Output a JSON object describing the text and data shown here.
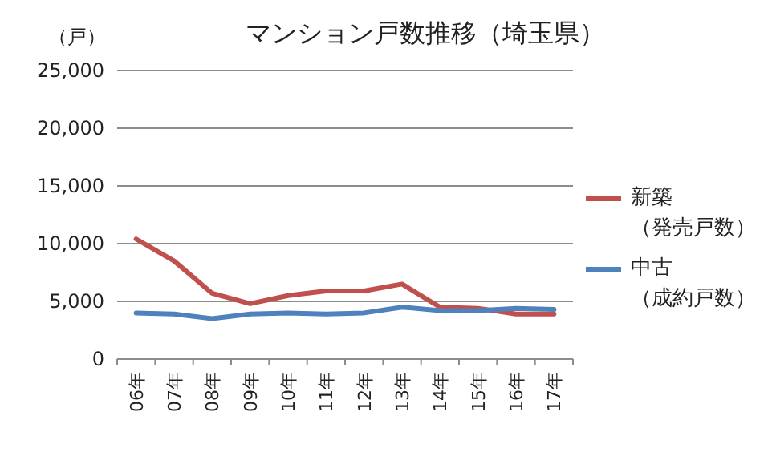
{
  "chart_data": {
    "type": "line",
    "title": "マンション戸数推移（埼玉県）",
    "ylabel": "（戸）",
    "categories": [
      "06年",
      "07年",
      "08年",
      "09年",
      "10年",
      "11年",
      "12年",
      "13年",
      "14年",
      "15年",
      "16年",
      "17年"
    ],
    "series": [
      {
        "name": "新築（発売戸数）",
        "color": "#c0504d",
        "values": [
          10400,
          8500,
          5700,
          4800,
          5500,
          5900,
          5900,
          6500,
          4500,
          4400,
          3900,
          3900
        ]
      },
      {
        "name": "中古（成約戸数）",
        "color": "#4f81bd",
        "values": [
          4000,
          3900,
          3500,
          3900,
          4000,
          3900,
          4000,
          4500,
          4200,
          4200,
          4400,
          4300
        ]
      }
    ],
    "ylim": [
      0,
      25000
    ],
    "yticks": [
      {
        "value": 0,
        "label": "0"
      },
      {
        "value": 5000,
        "label": "5,000"
      },
      {
        "value": 10000,
        "label": "10,000"
      },
      {
        "value": 15000,
        "label": "15,000"
      },
      {
        "value": 20000,
        "label": "20,000"
      },
      {
        "value": 25000,
        "label": "25,000"
      }
    ],
    "grid": "y",
    "legend": "right",
    "marker": "none",
    "line_style": "solid"
  }
}
